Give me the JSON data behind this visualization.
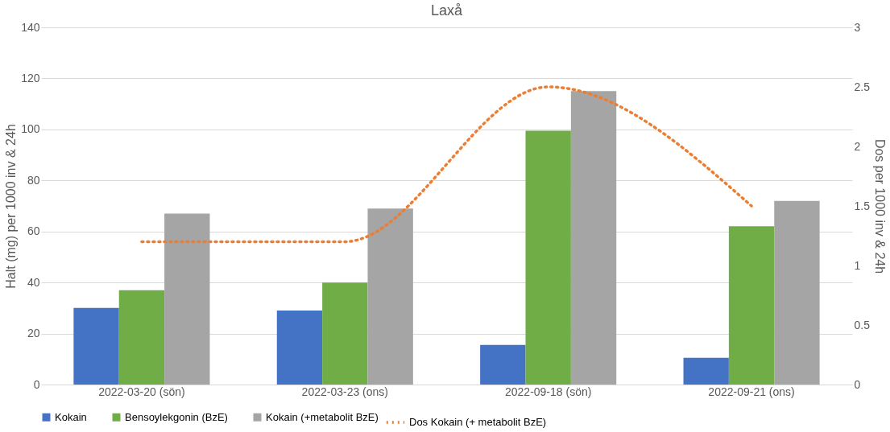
{
  "chart_data": {
    "type": "bar",
    "title": "Laxå",
    "ylabel": "Halt (mg) per 1000 inv & 24h",
    "y2label": "Dos per 1000 inv & 24h",
    "categories": [
      "2022-03-20 (sön)",
      "2022-03-23 (ons)",
      "2022-09-18 (sön)",
      "2022-09-21 (ons)"
    ],
    "series": [
      {
        "name": "Kokain",
        "color": "#4472c4",
        "values": [
          30,
          29,
          15.5,
          10.5
        ]
      },
      {
        "name": "Bensoylekgonin (BzE)",
        "color": "#70ad47",
        "values": [
          37,
          40,
          99.5,
          62
        ]
      },
      {
        "name": "Kokain (+metabolit BzE)",
        "color": "#a5a5a5",
        "values": [
          67,
          69,
          115,
          72
        ]
      },
      {
        "name": "Dos Kokain (+ metabolit BzE)",
        "color": "#ed7d31",
        "type": "line",
        "axis": "y2",
        "line_style": "dotted",
        "values": [
          1.2,
          1.2,
          2.5,
          1.5
        ]
      }
    ],
    "ylim": [
      0,
      140
    ],
    "yticks": [
      0,
      20,
      40,
      60,
      80,
      100,
      120,
      140
    ],
    "y2lim": [
      0,
      3
    ],
    "y2ticks": [
      0,
      0.5,
      1,
      1.5,
      2,
      2.5,
      3
    ],
    "grid": "y",
    "legend": "bottom"
  }
}
